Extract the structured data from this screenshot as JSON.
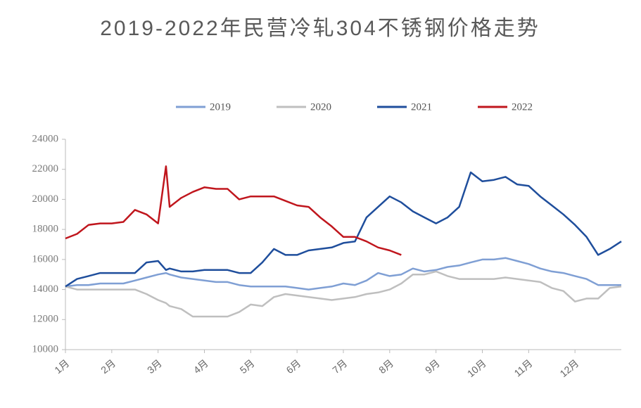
{
  "chart_data": {
    "type": "line",
    "title": "2019-2022年民营冷轧304不锈钢价格走势",
    "x": [
      1,
      1.25,
      1.5,
      1.75,
      2,
      2.25,
      2.5,
      2.75,
      3,
      3.17,
      3.25,
      3.5,
      3.75,
      4,
      4.25,
      4.5,
      4.75,
      5,
      5.25,
      5.5,
      5.75,
      6,
      6.25,
      6.5,
      6.75,
      7,
      7.25,
      7.5,
      7.75,
      8,
      8.25,
      8.5,
      8.75,
      9,
      9.25,
      9.5,
      9.75,
      10,
      10.25,
      10.5,
      10.75,
      11,
      11.25,
      11.5,
      11.75,
      12,
      12.25,
      12.5,
      12.75,
      13
    ],
    "series": [
      {
        "name": "2019",
        "color": "#7f9fd4",
        "values": [
          14200,
          14300,
          14300,
          14400,
          14400,
          14400,
          14600,
          14800,
          15000,
          15100,
          15000,
          14800,
          14700,
          14600,
          14500,
          14500,
          14300,
          14200,
          14200,
          14200,
          14200,
          14100,
          14000,
          14100,
          14200,
          14400,
          14300,
          14600,
          15100,
          14900,
          15000,
          15400,
          15200,
          15300,
          15500,
          15600,
          15800,
          16000,
          16000,
          16100,
          15900,
          15700,
          15400,
          15200,
          15100,
          14900,
          14700,
          14300,
          14300,
          14300
        ]
      },
      {
        "name": "2020",
        "color": "#bfbfbf",
        "values": [
          14200,
          14000,
          14000,
          14000,
          14000,
          14000,
          14000,
          13700,
          13300,
          13100,
          12900,
          12700,
          12200,
          12200,
          12200,
          12200,
          12500,
          13000,
          12900,
          13500,
          13700,
          13600,
          13500,
          13400,
          13300,
          13400,
          13500,
          13700,
          13800,
          14000,
          14400,
          15000,
          15000,
          15200,
          14900,
          14700,
          14700,
          14700,
          14700,
          14800,
          14700,
          14600,
          14500,
          14100,
          13900,
          13200,
          13400,
          13400,
          14100,
          14200
        ]
      },
      {
        "name": "2021",
        "color": "#1f4e9c",
        "values": [
          14200,
          14700,
          14900,
          15100,
          15100,
          15100,
          15100,
          15800,
          15900,
          15300,
          15400,
          15200,
          15200,
          15300,
          15300,
          15300,
          15100,
          15100,
          15800,
          16700,
          16300,
          16300,
          16600,
          16700,
          16800,
          17100,
          17200,
          18800,
          19500,
          20200,
          19800,
          19200,
          18800,
          18400,
          18800,
          19500,
          21800,
          21200,
          21300,
          21500,
          21000,
          20900,
          20200,
          19600,
          19000,
          18300,
          17500,
          16300,
          16700,
          17200
        ]
      },
      {
        "name": "2022",
        "color": "#c0161d",
        "values": [
          17400,
          17700,
          18300,
          18400,
          18400,
          18500,
          19300,
          19000,
          18400,
          22200,
          19500,
          20100,
          20500,
          20800,
          20700,
          20700,
          20000,
          20200,
          20200,
          20200,
          19900,
          19600,
          19500,
          18800,
          18200,
          17500,
          17500,
          17200,
          16800,
          16600,
          16300,
          null,
          null,
          null,
          null,
          null,
          null,
          null,
          null,
          null,
          null,
          null,
          null,
          null,
          null,
          null,
          null,
          null,
          null,
          null
        ]
      }
    ],
    "xlim": [
      1,
      13
    ],
    "xticks": [
      {
        "value": 1,
        "label": "1月"
      },
      {
        "value": 2,
        "label": "2月"
      },
      {
        "value": 3,
        "label": "3月"
      },
      {
        "value": 4,
        "label": "4月"
      },
      {
        "value": 5,
        "label": "5月"
      },
      {
        "value": 6,
        "label": "6月"
      },
      {
        "value": 7,
        "label": "7月"
      },
      {
        "value": 8,
        "label": "8月"
      },
      {
        "value": 9,
        "label": "9月"
      },
      {
        "value": 10,
        "label": "10月"
      },
      {
        "value": 11,
        "label": "11月"
      },
      {
        "value": 12,
        "label": "12月"
      }
    ],
    "ylim": [
      10000,
      24000
    ],
    "yticks": [
      10000,
      12000,
      14000,
      16000,
      18000,
      20000,
      22000,
      24000
    ]
  }
}
